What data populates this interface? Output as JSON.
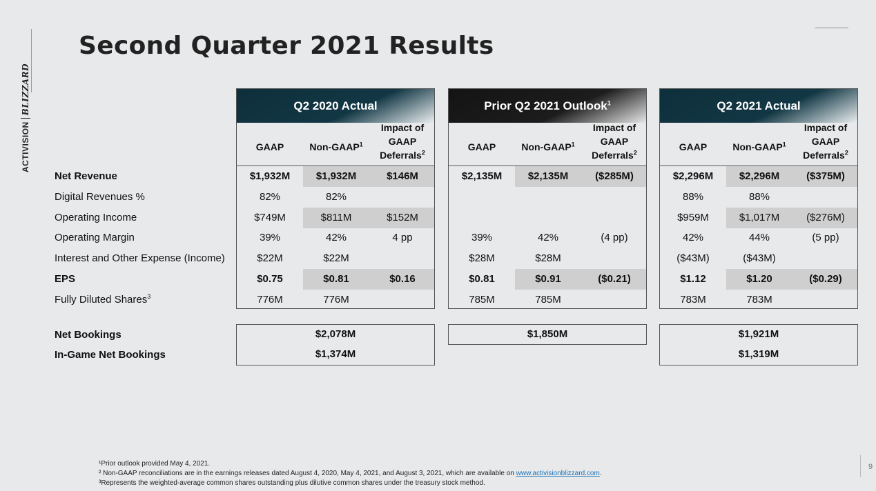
{
  "title": "Second Quarter 2021 Results",
  "brand": {
    "left": "ACTIVISION",
    "right": "BLIZZARD"
  },
  "page_number": "9",
  "sub_headers": {
    "gaap": "GAAP",
    "non_gaap": "Non-GAAP",
    "non_gaap_sup": "1",
    "impact_l1": "Impact of",
    "impact_l2": "GAAP",
    "impact_l3": "Deferrals",
    "impact_sup": "2"
  },
  "row_labels": [
    {
      "text": "Net Revenue",
      "sup": ""
    },
    {
      "text": "Digital Revenues %",
      "sup": ""
    },
    {
      "text": "Operating Income",
      "sup": ""
    },
    {
      "text": "Operating Margin",
      "sup": ""
    },
    {
      "text": "Interest and Other Expense (Income)",
      "sup": ""
    },
    {
      "text": "EPS",
      "sup": ""
    },
    {
      "text": "Fully Diluted Shares",
      "sup": "3"
    }
  ],
  "bookings_labels": [
    "Net Bookings",
    "In-Game Net Bookings"
  ],
  "blocks": [
    {
      "title": "Q2 2020 Actual",
      "title_sup": "",
      "rows": [
        [
          "$1,932M",
          "$1,932M",
          "$146M"
        ],
        [
          "82%",
          "82%",
          ""
        ],
        [
          "$749M",
          "$811M",
          "$152M"
        ],
        [
          "39%",
          "42%",
          "4 pp"
        ],
        [
          "$22M",
          "$22M",
          ""
        ],
        [
          "$0.75",
          "$0.81",
          "$0.16"
        ],
        [
          "776M",
          "776M",
          ""
        ]
      ],
      "bookings": [
        "$2,078M",
        "$1,374M"
      ]
    },
    {
      "title": "Prior Q2 2021 Outlook",
      "title_sup": "1",
      "rows": [
        [
          "$2,135M",
          "$2,135M",
          "($285M)"
        ],
        [
          "",
          "",
          ""
        ],
        [
          "",
          "",
          ""
        ],
        [
          "39%",
          "42%",
          "(4 pp)"
        ],
        [
          "$28M",
          "$28M",
          ""
        ],
        [
          "$0.81",
          "$0.91",
          "($0.21)"
        ],
        [
          "785M",
          "785M",
          ""
        ]
      ],
      "bookings": [
        "$1,850M"
      ]
    },
    {
      "title": "Q2 2021 Actual",
      "title_sup": "",
      "rows": [
        [
          "$2,296M",
          "$2,296M",
          "($375M)"
        ],
        [
          "88%",
          "88%",
          ""
        ],
        [
          "$959M",
          "$1,017M",
          "($276M)"
        ],
        [
          "42%",
          "44%",
          "(5 pp)"
        ],
        [
          "($43M)",
          "($43M)",
          ""
        ],
        [
          "$1.12",
          "$1.20",
          "($0.29)"
        ],
        [
          "783M",
          "783M",
          ""
        ]
      ],
      "bookings": [
        "$1,921M",
        "$1,319M"
      ]
    }
  ],
  "footnotes": {
    "n1": "¹Prior outlook provided May 4, 2021.",
    "n2": "² Non-GAAP reconciliations are in the earnings releases dated August 4, 2020, May 4, 2021, and August 3, 2021, which are available on ",
    "n2_link": "www.activisionblizzard.com",
    "n2_end": ".",
    "n3": "³Represents the weighted-average common shares outstanding plus dilutive common shares under the treasury stock method."
  },
  "colors": {
    "teal_header": "#0e2f3b",
    "dark_header": "#141414",
    "shade": "#cfcfd0",
    "link": "#1a73b8"
  }
}
